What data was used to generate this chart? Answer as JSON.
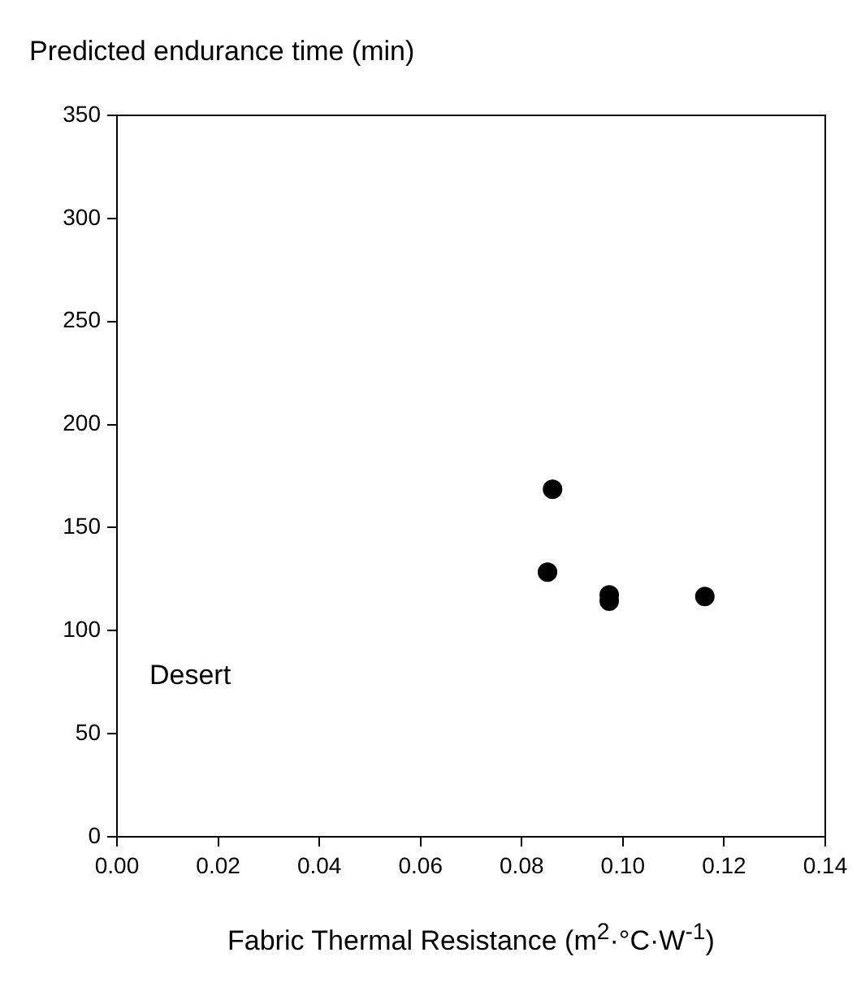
{
  "chart_data": {
    "type": "scatter",
    "ylabel": "Predicted endurance time (min)",
    "xlabel": "Fabric Thermal Resistance (m$^{2}$·°C·W$^{-1}$)",
    "annotations": [
      "Desert"
    ],
    "x": [
      0.0861,
      0.0851,
      0.0973,
      0.0973,
      0.1162
    ],
    "series": [
      {
        "color": "#000000",
        "values": [
          168.6,
          128.4,
          117.4,
          114.3,
          116.6
        ]
      }
    ],
    "marker": "circle",
    "xlim": [
      0,
      0.14
    ],
    "xticks": [
      {
        "value": 0,
        "label": "0.00"
      },
      {
        "value": 0.02,
        "label": "0.02"
      },
      {
        "value": 0.04,
        "label": "0.04"
      },
      {
        "value": 0.06,
        "label": "0.06"
      },
      {
        "value": 0.08,
        "label": "0.08"
      },
      {
        "value": 0.1,
        "label": "0.10"
      },
      {
        "value": 0.12,
        "label": "0.12"
      },
      {
        "value": 0.14,
        "label": "0.14"
      }
    ],
    "ylim": [
      0,
      350
    ],
    "yticks": [
      0,
      50,
      100,
      150,
      200,
      250,
      300,
      350
    ],
    "grid": false,
    "legend": false
  }
}
